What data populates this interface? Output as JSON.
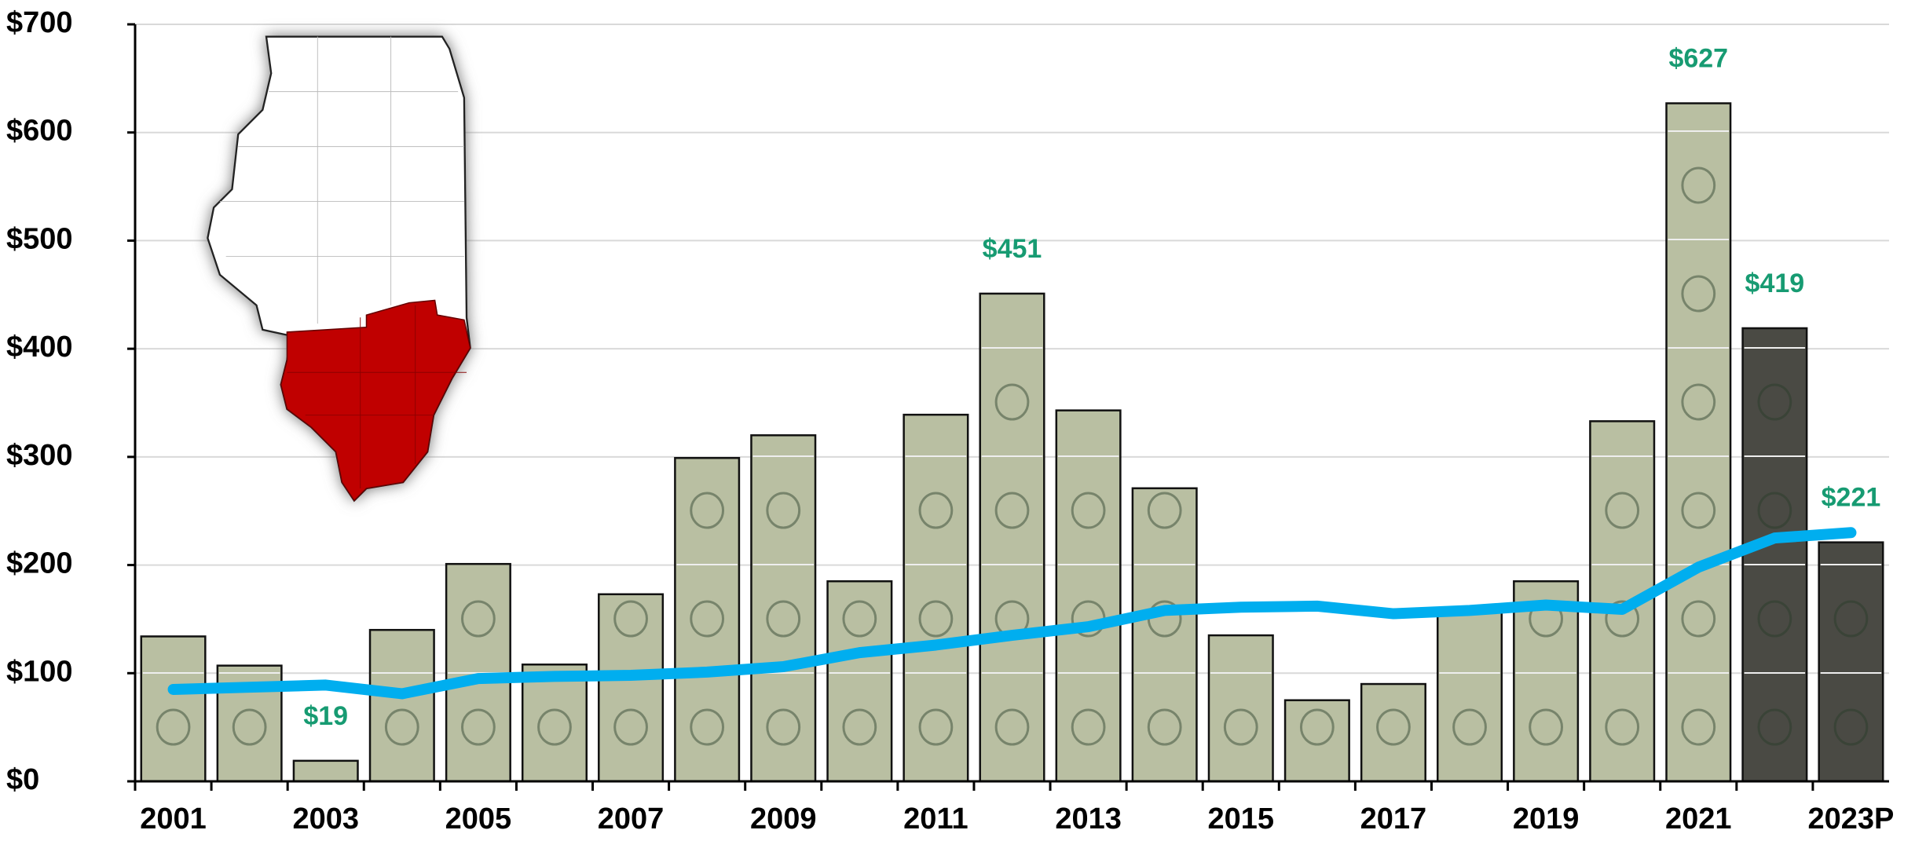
{
  "chart_data": {
    "type": "bar",
    "categories": [
      "2001",
      null,
      "2003",
      null,
      "2005",
      null,
      "2007",
      null,
      "2009",
      null,
      "2011",
      null,
      "2013",
      null,
      "2015",
      null,
      "2017",
      null,
      "2019",
      null,
      "2021",
      null,
      "2023P"
    ],
    "series": [
      {
        "type": "bar",
        "values": [
          134,
          107,
          19,
          140,
          201,
          108,
          173,
          299,
          320,
          185,
          339,
          451,
          343,
          271,
          135,
          75,
          90,
          160,
          185,
          333,
          627,
          419,
          221
        ],
        "value_labels": [
          null,
          null,
          "$19",
          null,
          null,
          null,
          null,
          null,
          null,
          null,
          null,
          "$451",
          null,
          null,
          null,
          null,
          null,
          null,
          null,
          null,
          "$627",
          "$419",
          "$221"
        ],
        "colors": [
          "#b9bfa2",
          "#b9bfa2",
          "#b9bfa2",
          "#b9bfa2",
          "#b9bfa2",
          "#b9bfa2",
          "#b9bfa2",
          "#b9bfa2",
          "#b9bfa2",
          "#b9bfa2",
          "#b9bfa2",
          "#b9bfa2",
          "#b9bfa2",
          "#b9bfa2",
          "#b9bfa2",
          "#b9bfa2",
          "#b9bfa2",
          "#b9bfa2",
          "#b9bfa2",
          "#b9bfa2",
          "#b9bfa2",
          "#4a4a44",
          "#4a4a44"
        ]
      },
      {
        "type": "line",
        "color": "#00aeef",
        "values": [
          85,
          87,
          89,
          81,
          95,
          97,
          98,
          101,
          106,
          119,
          126,
          135,
          143,
          158,
          161,
          162,
          155,
          158,
          163,
          159,
          198,
          225,
          230
        ]
      }
    ],
    "ylim": [
      0,
      700
    ],
    "yticks": [
      {
        "value": 0,
        "label": "$0"
      },
      {
        "value": 100,
        "label": "$100"
      },
      {
        "value": 200,
        "label": "$200"
      },
      {
        "value": 300,
        "label": "$300"
      },
      {
        "value": 400,
        "label": "$400"
      },
      {
        "value": 500,
        "label": "$500"
      },
      {
        "value": 600,
        "label": "$600"
      },
      {
        "value": 700,
        "label": "$700"
      }
    ],
    "grid": true
  }
}
